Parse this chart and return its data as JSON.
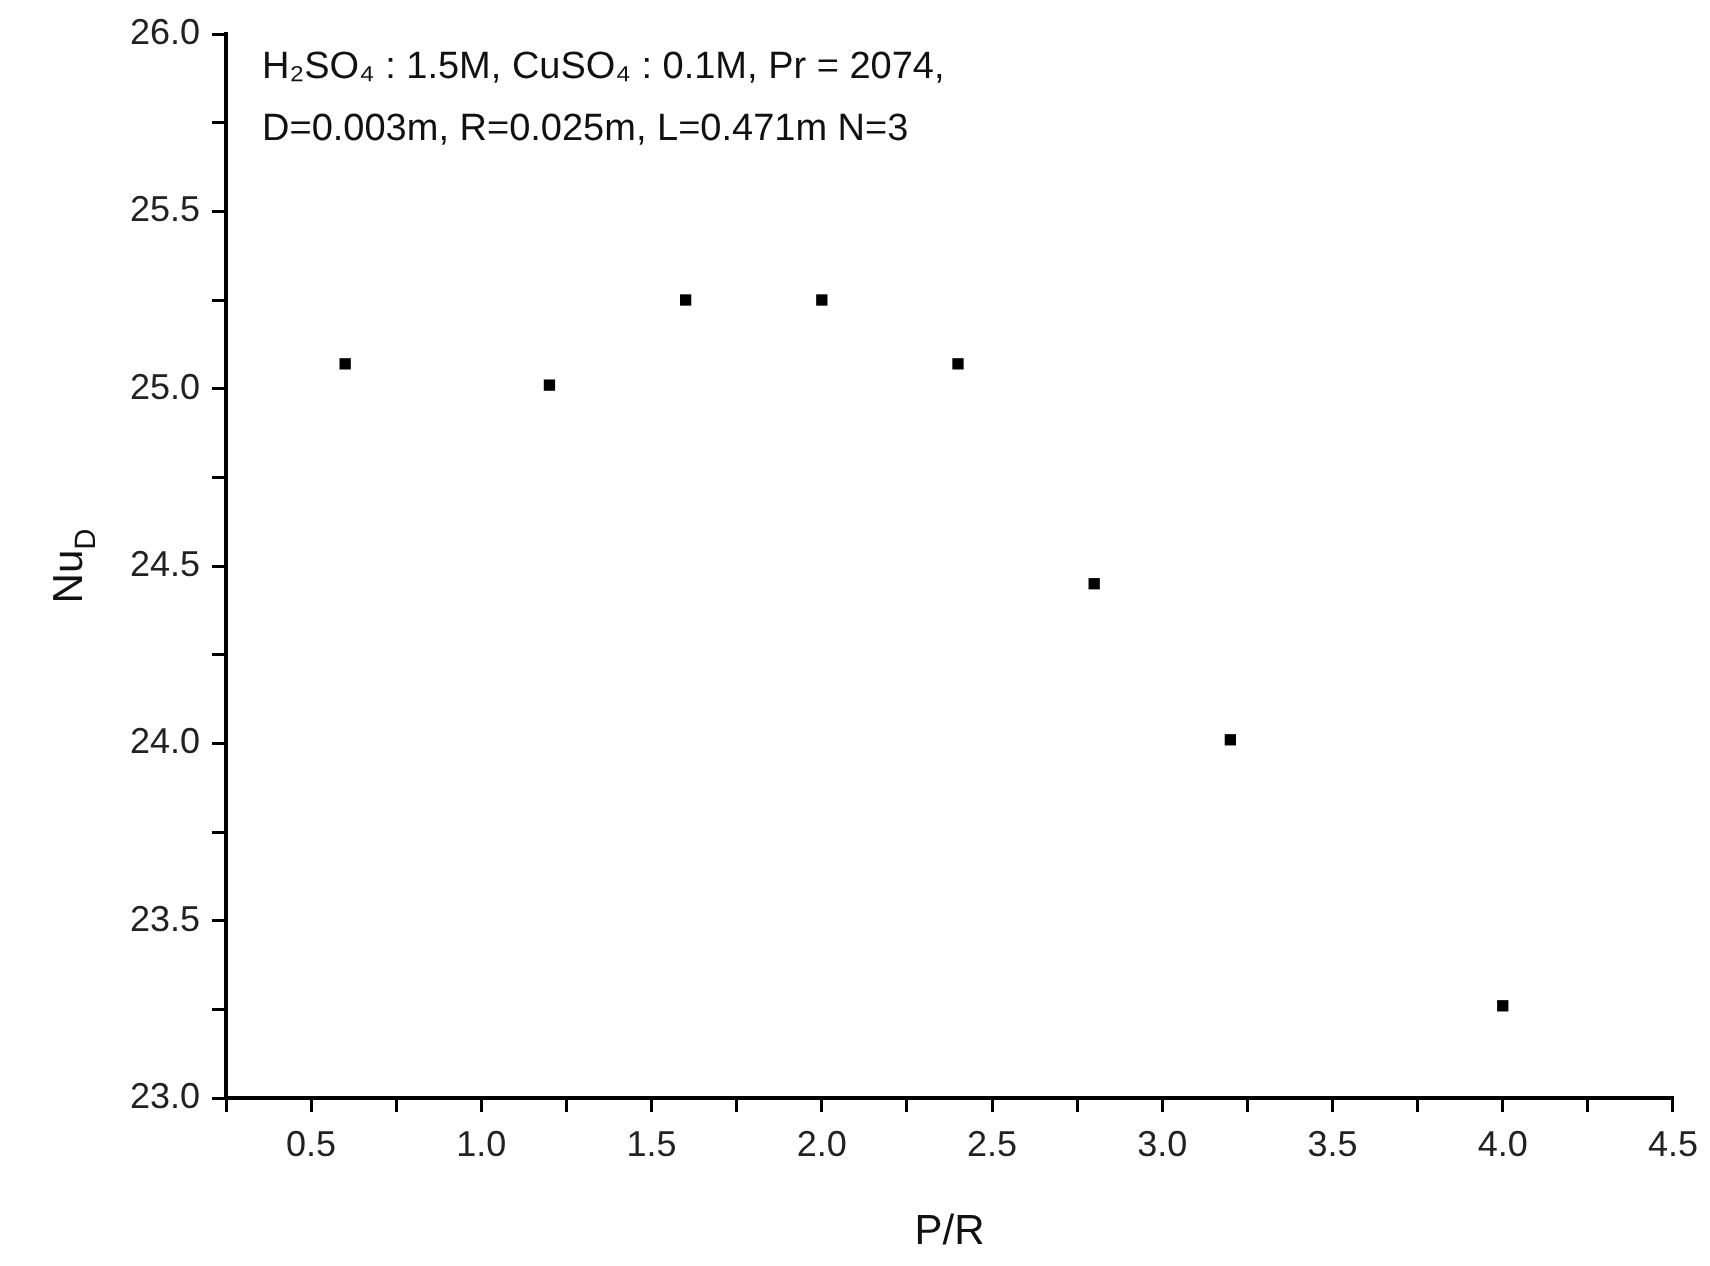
{
  "chart_data": {
    "type": "scatter",
    "xlabel": "P/R",
    "ylabel": "Nu$_{D}$",
    "annotations": [
      "H₂SO₄ : 1.5M, CuSO₄ : 0.1M, Pr = 2074,",
      "D=0.003m, R=0.025m, L=0.471m N=3"
    ],
    "x": [
      0.6,
      1.2,
      1.6,
      2.0,
      2.4,
      2.8,
      3.2,
      4.0
    ],
    "values": [
      25.07,
      25.01,
      25.25,
      25.25,
      25.07,
      24.45,
      24.01,
      23.26
    ],
    "color": "#000000",
    "marker": "square",
    "grid": false,
    "legend": false,
    "xlim": [
      0.25,
      4.5
    ],
    "xticks": [
      {
        "value": 0.25,
        "label": null
      },
      {
        "value": 0.5,
        "label": "0.5"
      },
      {
        "value": 0.75,
        "label": null
      },
      {
        "value": 1,
        "label": "1.0"
      },
      {
        "value": 1.25,
        "label": null
      },
      {
        "value": 1.5,
        "label": "1.5"
      },
      {
        "value": 1.75,
        "label": null
      },
      {
        "value": 2,
        "label": "2.0"
      },
      {
        "value": 2.25,
        "label": null
      },
      {
        "value": 2.5,
        "label": "2.5"
      },
      {
        "value": 2.75,
        "label": null
      },
      {
        "value": 3,
        "label": "3.0"
      },
      {
        "value": 3.25,
        "label": null
      },
      {
        "value": 3.5,
        "label": "3.5"
      },
      {
        "value": 3.75,
        "label": null
      },
      {
        "value": 4,
        "label": "4.0"
      },
      {
        "value": 4.25,
        "label": null
      },
      {
        "value": 4.5,
        "label": "4.5"
      }
    ],
    "ylim": [
      23,
      26
    ],
    "yticks": [
      {
        "value": 23,
        "label": "23.0"
      },
      {
        "value": 23.25,
        "label": null
      },
      {
        "value": 23.5,
        "label": "23.5"
      },
      {
        "value": 23.75,
        "label": null
      },
      {
        "value": 24,
        "label": "24.0"
      },
      {
        "value": 24.25,
        "label": null
      },
      {
        "value": 24.5,
        "label": "24.5"
      },
      {
        "value": 24.75,
        "label": null
      },
      {
        "value": 25,
        "label": "25.0"
      },
      {
        "value": 25.25,
        "label": null
      },
      {
        "value": 25.5,
        "label": "25.5"
      },
      {
        "value": 25.75,
        "label": null
      },
      {
        "value": 26,
        "label": "26.0"
      }
    ]
  }
}
